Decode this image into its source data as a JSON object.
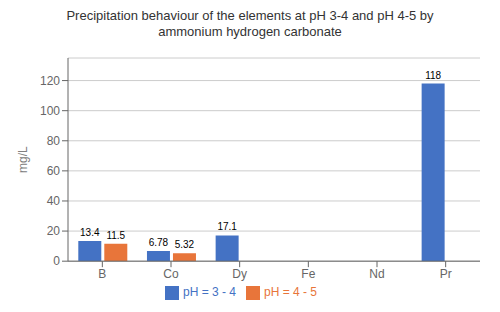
{
  "chart_data": {
    "type": "bar",
    "title": "Precipitation behaviour of the elements at pH 3-4 and pH 4-5 by\nammonium hydrogen carbonate",
    "categories": [
      "B",
      "Co",
      "Dy",
      "Fe",
      "Nd",
      "Pr"
    ],
    "series": [
      {
        "name": "pH = 3 - 4",
        "color": "#4472C4",
        "values": [
          13.4,
          6.78,
          17.1,
          0,
          0,
          118
        ]
      },
      {
        "name": "pH = 4 - 5",
        "color": "#E8753A",
        "values": [
          11.5,
          5.32,
          0,
          0,
          0,
          0
        ]
      }
    ],
    "ylabel": "mg/L",
    "ylim": [
      0,
      135
    ],
    "yticks": [
      0,
      20,
      40,
      60,
      80,
      100,
      120
    ],
    "grid": true,
    "legend": "bottom",
    "data_labels": true
  }
}
